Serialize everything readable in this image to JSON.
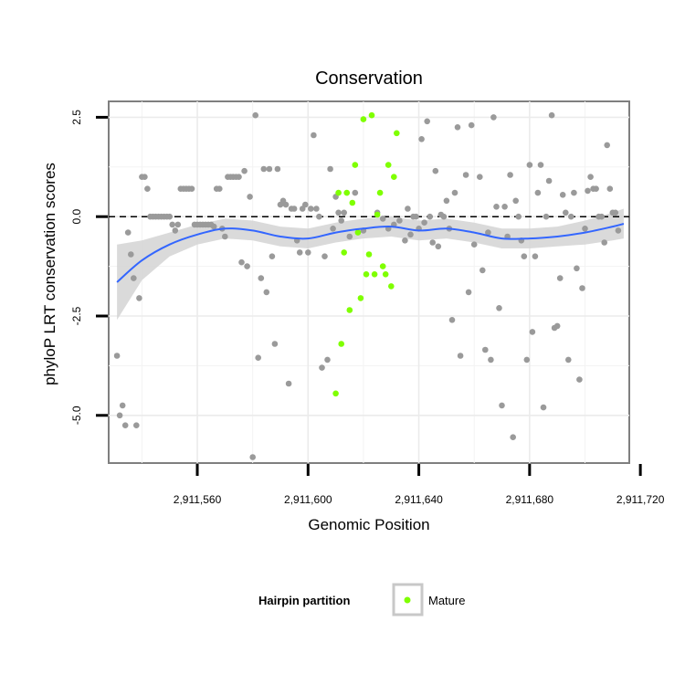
{
  "chart_data": {
    "type": "scatter",
    "title": "Conservation",
    "xlabel": "Genomic Position",
    "ylabel": "phyloP LRT conservation scores",
    "xlim": [
      2911528,
      2911716
    ],
    "ylim": [
      -6.2,
      2.9
    ],
    "x_ticks": [
      2911560,
      2911600,
      2911640,
      2911680,
      2911720
    ],
    "x_tick_labels": [
      "2,911,560",
      "2,911,600",
      "2,911,640",
      "2,911,680",
      "2,911,720"
    ],
    "y_ticks": [
      2.5,
      0.0,
      -2.5,
      -5.0
    ],
    "y_tick_labels": [
      "2.5",
      "0.0",
      "-2.5",
      "-5.0"
    ],
    "reference_line_y": 0,
    "grid": true,
    "legend": {
      "title": "Hairpin partition",
      "position": "bottom",
      "entries": [
        {
          "label": "Mature",
          "color": "#7fff00"
        }
      ]
    },
    "colors": {
      "other": "#9a9a9a",
      "mature": "#7fff00",
      "smooth": "#3366ff",
      "band": "#d3d3d3"
    },
    "series": [
      {
        "color": "#9a9a9a",
        "points": [
          [
            2911531,
            -3.5
          ],
          [
            2911532,
            -5.0
          ],
          [
            2911533,
            -4.75
          ],
          [
            2911534,
            -5.25
          ],
          [
            2911535,
            -0.4
          ],
          [
            2911536,
            -0.95
          ],
          [
            2911537,
            -1.55
          ],
          [
            2911538,
            -5.25
          ],
          [
            2911539,
            -2.05
          ],
          [
            2911540,
            1.0
          ],
          [
            2911541,
            1.0
          ],
          [
            2911542,
            0.7
          ],
          [
            2911543,
            0.0
          ],
          [
            2911544,
            0.0
          ],
          [
            2911545,
            0.0
          ],
          [
            2911546,
            0.0
          ],
          [
            2911547,
            0.0
          ],
          [
            2911548,
            0.0
          ],
          [
            2911549,
            0.0
          ],
          [
            2911550,
            0.0
          ],
          [
            2911551,
            -0.2
          ],
          [
            2911552,
            -0.35
          ],
          [
            2911553,
            -0.2
          ],
          [
            2911554,
            0.7
          ],
          [
            2911555,
            0.7
          ],
          [
            2911556,
            0.7
          ],
          [
            2911557,
            0.7
          ],
          [
            2911558,
            0.7
          ],
          [
            2911559,
            -0.2
          ],
          [
            2911560,
            -0.2
          ],
          [
            2911561,
            -0.2
          ],
          [
            2911562,
            -0.2
          ],
          [
            2911563,
            -0.2
          ],
          [
            2911564,
            -0.2
          ],
          [
            2911565,
            -0.2
          ],
          [
            2911566,
            -0.25
          ],
          [
            2911567,
            0.7
          ],
          [
            2911568,
            0.7
          ],
          [
            2911569,
            -0.3
          ],
          [
            2911570,
            -0.5
          ],
          [
            2911571,
            1.0
          ],
          [
            2911572,
            1.0
          ],
          [
            2911573,
            1.0
          ],
          [
            2911574,
            1.0
          ],
          [
            2911575,
            1.0
          ],
          [
            2911576,
            -1.15
          ],
          [
            2911577,
            1.15
          ],
          [
            2911578,
            -1.25
          ],
          [
            2911579,
            0.5
          ],
          [
            2911580,
            -6.05
          ],
          [
            2911581,
            2.55
          ],
          [
            2911582,
            -3.55
          ],
          [
            2911583,
            -1.55
          ],
          [
            2911584,
            1.2
          ],
          [
            2911585,
            -1.9
          ],
          [
            2911586,
            1.2
          ],
          [
            2911587,
            -1.0
          ],
          [
            2911588,
            -3.2
          ],
          [
            2911589,
            1.2
          ],
          [
            2911590,
            0.3
          ],
          [
            2911591,
            0.4
          ],
          [
            2911592,
            0.3
          ],
          [
            2911593,
            -4.2
          ],
          [
            2911594,
            0.2
          ],
          [
            2911595,
            0.2
          ],
          [
            2911596,
            -0.6
          ],
          [
            2911597,
            -0.9
          ],
          [
            2911598,
            0.2
          ],
          [
            2911599,
            0.3
          ],
          [
            2911600,
            -0.9
          ],
          [
            2911601,
            0.2
          ],
          [
            2911602,
            2.05
          ],
          [
            2911603,
            0.2
          ],
          [
            2911604,
            0.0
          ],
          [
            2911605,
            -3.8
          ],
          [
            2911606,
            -1.0
          ],
          [
            2911607,
            -3.6
          ],
          [
            2911608,
            1.2
          ],
          [
            2911609,
            -0.3
          ],
          [
            2911610,
            0.5
          ],
          [
            2911611,
            0.1
          ],
          [
            2911612,
            -0.1
          ],
          [
            2911613,
            0.1
          ],
          [
            2911615,
            -0.5
          ],
          [
            2911617,
            0.6
          ],
          [
            2911620,
            -0.35
          ],
          [
            2911625,
            0.1
          ],
          [
            2911627,
            -0.05
          ],
          [
            2911629,
            -0.3
          ],
          [
            2911631,
            -0.2
          ],
          [
            2911633,
            -0.1
          ],
          [
            2911635,
            -0.6
          ],
          [
            2911636,
            0.2
          ],
          [
            2911637,
            -0.45
          ],
          [
            2911638,
            0.0
          ],
          [
            2911639,
            0.0
          ],
          [
            2911640,
            -0.3
          ],
          [
            2911641,
            1.95
          ],
          [
            2911642,
            -0.15
          ],
          [
            2911643,
            2.4
          ],
          [
            2911644,
            0.0
          ],
          [
            2911645,
            -0.65
          ],
          [
            2911646,
            1.15
          ],
          [
            2911647,
            -0.75
          ],
          [
            2911648,
            0.05
          ],
          [
            2911649,
            0.0
          ],
          [
            2911650,
            0.4
          ],
          [
            2911651,
            -0.3
          ],
          [
            2911652,
            -2.6
          ],
          [
            2911653,
            0.6
          ],
          [
            2911654,
            2.25
          ],
          [
            2911655,
            -3.5
          ],
          [
            2911657,
            1.05
          ],
          [
            2911658,
            -1.9
          ],
          [
            2911659,
            2.3
          ],
          [
            2911660,
            -0.7
          ],
          [
            2911662,
            1.0
          ],
          [
            2911663,
            -1.35
          ],
          [
            2911664,
            -3.35
          ],
          [
            2911665,
            -0.4
          ],
          [
            2911666,
            -3.6
          ],
          [
            2911667,
            2.5
          ],
          [
            2911668,
            0.25
          ],
          [
            2911669,
            -2.3
          ],
          [
            2911670,
            -4.75
          ],
          [
            2911671,
            0.25
          ],
          [
            2911672,
            -0.5
          ],
          [
            2911673,
            1.05
          ],
          [
            2911674,
            -5.55
          ],
          [
            2911675,
            0.4
          ],
          [
            2911676,
            0.0
          ],
          [
            2911677,
            -0.6
          ],
          [
            2911678,
            -1.0
          ],
          [
            2911679,
            -3.6
          ],
          [
            2911680,
            1.3
          ],
          [
            2911681,
            -2.9
          ],
          [
            2911682,
            -1.0
          ],
          [
            2911683,
            0.6
          ],
          [
            2911684,
            1.3
          ],
          [
            2911685,
            -4.8
          ],
          [
            2911686,
            0.0
          ],
          [
            2911687,
            0.9
          ],
          [
            2911688,
            2.55
          ],
          [
            2911689,
            -2.8
          ],
          [
            2911690,
            -2.75
          ],
          [
            2911691,
            -1.55
          ],
          [
            2911692,
            0.55
          ],
          [
            2911693,
            0.1
          ],
          [
            2911694,
            -3.6
          ],
          [
            2911695,
            0.0
          ],
          [
            2911696,
            0.6
          ],
          [
            2911697,
            -1.3
          ],
          [
            2911698,
            -4.1
          ],
          [
            2911699,
            -1.8
          ],
          [
            2911700,
            -0.3
          ],
          [
            2911701,
            0.65
          ],
          [
            2911702,
            1.0
          ],
          [
            2911703,
            0.7
          ],
          [
            2911704,
            0.7
          ],
          [
            2911705,
            0.0
          ],
          [
            2911706,
            0.0
          ],
          [
            2911707,
            -0.65
          ],
          [
            2911708,
            1.8
          ],
          [
            2911709,
            0.7
          ],
          [
            2911710,
            0.1
          ],
          [
            2911711,
            0.1
          ],
          [
            2911712,
            -0.35
          ]
        ]
      },
      {
        "name": "Mature",
        "color": "#7fff00",
        "points": [
          [
            2911610,
            -4.45
          ],
          [
            2911611,
            0.6
          ],
          [
            2911612,
            -3.2
          ],
          [
            2911613,
            -0.9
          ],
          [
            2911614,
            0.6
          ],
          [
            2911615,
            -2.35
          ],
          [
            2911616,
            0.35
          ],
          [
            2911617,
            1.3
          ],
          [
            2911618,
            -0.4
          ],
          [
            2911619,
            -2.05
          ],
          [
            2911620,
            2.45
          ],
          [
            2911621,
            -1.45
          ],
          [
            2911622,
            -0.95
          ],
          [
            2911623,
            2.55
          ],
          [
            2911624,
            -1.45
          ],
          [
            2911625,
            0.05
          ],
          [
            2911626,
            0.6
          ],
          [
            2911627,
            -1.25
          ],
          [
            2911628,
            -1.45
          ],
          [
            2911629,
            1.3
          ],
          [
            2911630,
            -1.75
          ],
          [
            2911631,
            1.0
          ],
          [
            2911632,
            2.1
          ]
        ]
      }
    ],
    "smooth": {
      "x": [
        2911531,
        2911540,
        2911550,
        2911560,
        2911570,
        2911580,
        2911590,
        2911600,
        2911610,
        2911620,
        2911630,
        2911640,
        2911650,
        2911660,
        2911670,
        2911680,
        2911690,
        2911700,
        2911710,
        2911714
      ],
      "y": [
        -1.65,
        -1.1,
        -0.7,
        -0.45,
        -0.3,
        -0.35,
        -0.5,
        -0.55,
        -0.4,
        -0.3,
        -0.25,
        -0.35,
        -0.3,
        -0.4,
        -0.55,
        -0.55,
        -0.5,
        -0.4,
        -0.25,
        -0.18
      ],
      "lower": [
        -2.6,
        -1.6,
        -1.0,
        -0.7,
        -0.55,
        -0.6,
        -0.75,
        -0.8,
        -0.65,
        -0.55,
        -0.5,
        -0.6,
        -0.55,
        -0.65,
        -0.8,
        -0.8,
        -0.75,
        -0.7,
        -0.6,
        -0.55
      ],
      "upper": [
        -0.7,
        -0.6,
        -0.4,
        -0.2,
        -0.05,
        -0.1,
        -0.25,
        -0.3,
        -0.15,
        -0.05,
        0.0,
        -0.1,
        -0.05,
        -0.15,
        -0.3,
        -0.3,
        -0.25,
        -0.1,
        0.1,
        0.2
      ]
    }
  }
}
